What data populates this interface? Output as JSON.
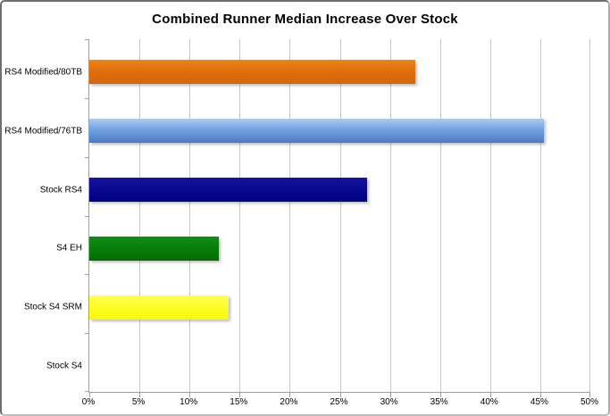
{
  "chart_data": {
    "type": "bar",
    "orientation": "horizontal",
    "title": "Combined Runner Median Increase Over Stock",
    "categories": [
      "RS4 Modified/80TB",
      "RS4 Modified/76TB",
      "Stock RS4",
      "S4 EH",
      "Stock S4 SRM",
      "Stock S4"
    ],
    "values": [
      32.5,
      45.4,
      27.7,
      12.9,
      13.9,
      0
    ],
    "value_unit": "percent",
    "xlabel": "",
    "ylabel": "",
    "xlim": [
      0,
      50
    ],
    "x_tick_step": 5,
    "x_tick_labels": [
      "0%",
      "5%",
      "10%",
      "15%",
      "20%",
      "25%",
      "30%",
      "35%",
      "40%",
      "45%",
      "50%"
    ],
    "grid": true,
    "legend": "none",
    "bar_fills": [
      {
        "name": "orange",
        "stops": [
          "#EE8414",
          "#DE6E0C",
          "#D7650A"
        ]
      },
      {
        "name": "light-blue",
        "stops": [
          "#A9CBF3",
          "#6E9CDE",
          "#4A7BC4"
        ]
      },
      {
        "name": "navy",
        "stops": [
          "#14149E",
          "#000082"
        ]
      },
      {
        "name": "green",
        "stops": [
          "#118E11",
          "#016D01"
        ]
      },
      {
        "name": "yellow",
        "stops": [
          "#FFFF4D",
          "#FAFA00"
        ]
      },
      {
        "name": "none",
        "stops": []
      }
    ]
  },
  "colors": {
    "gridline": "#C8C8C8",
    "axis": "#9E9E9E",
    "border": "#6F6F6F",
    "title": "#000000",
    "background": "#FFFFFF"
  }
}
